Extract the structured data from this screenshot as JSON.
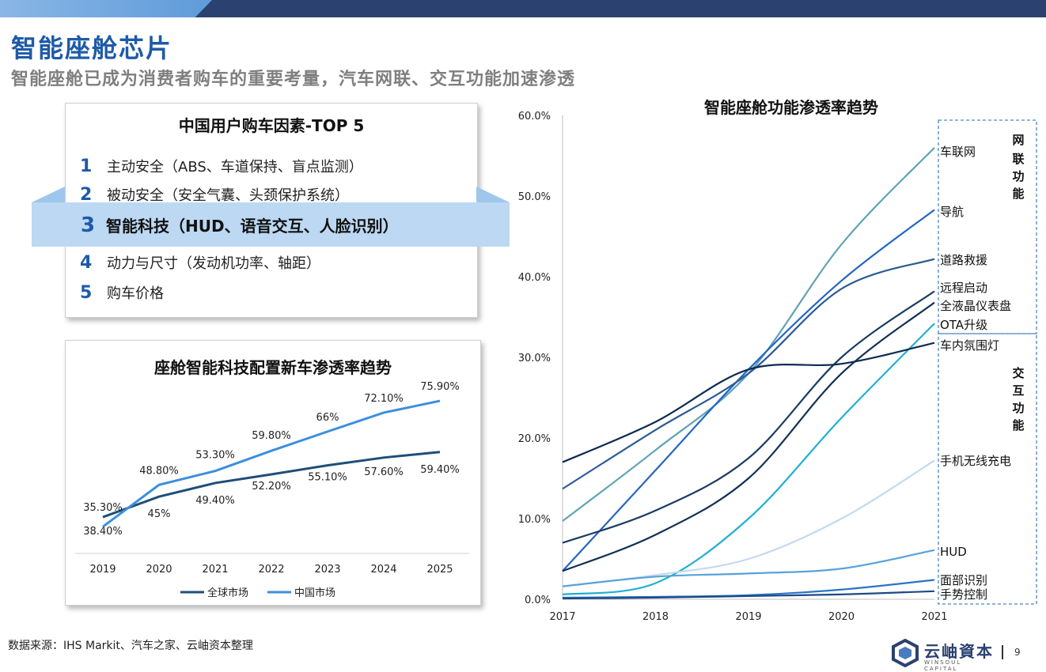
{
  "header": {
    "title": "智能座舱芯片",
    "subtitle": "智能座舱已成为消费者购车的重要考量，汽车网联、交互功能加速渗透"
  },
  "top5": {
    "title": "中国用户购车因素-TOP 5",
    "items": [
      {
        "num": "1",
        "label": "主动安全（ABS、车道保持、盲点监测）"
      },
      {
        "num": "2",
        "label": "被动安全（安全气囊、头颈保护系统）"
      },
      {
        "num": "3",
        "label": "智能科技（HUD、语音交互、人脸识别）"
      },
      {
        "num": "4",
        "label": "动力与尺寸（发动机功率、轴距）"
      },
      {
        "num": "5",
        "label": "购车价格"
      }
    ]
  },
  "chart_data": [
    {
      "type": "line",
      "title": "座舱智能科技配置新车渗透率趋势",
      "categories": [
        "2019",
        "2020",
        "2021",
        "2022",
        "2023",
        "2024",
        "2025"
      ],
      "series": [
        {
          "name": "全球市场",
          "values": [
            38.4,
            45,
            49.4,
            52.2,
            55.1,
            57.6,
            59.4
          ],
          "labels": [
            "38.40%",
            "45%",
            "49.40%",
            "52.20%",
            "55.10%",
            "57.60%",
            "59.40%"
          ]
        },
        {
          "name": "中国市场",
          "values": [
            35.3,
            48.8,
            53.3,
            59.8,
            66,
            72.1,
            75.9
          ],
          "labels": [
            "35.30%",
            "48.80%",
            "53.30%",
            "59.80%",
            "66%",
            "72.10%",
            "75.90%"
          ]
        }
      ],
      "ylim": [
        30,
        80
      ],
      "colors": {
        "全球市场": "#1f4e79",
        "中国市场": "#3c8fdc"
      },
      "legend": "bottom"
    },
    {
      "type": "line",
      "title": "智能座舱功能渗透率趋势",
      "x": [
        "2017",
        "2018",
        "2019",
        "2020",
        "2021"
      ],
      "yticks": [
        "0.0%",
        "10.0%",
        "20.0%",
        "30.0%",
        "40.0%",
        "50.0%",
        "60.0%"
      ],
      "ylim": [
        0,
        60
      ],
      "series": [
        {
          "name": "车联网",
          "values": [
            9.7,
            18.5,
            28,
            44,
            56
          ],
          "color": "#5fa3b5"
        },
        {
          "name": "导航",
          "values": [
            3.5,
            16,
            28.5,
            39.5,
            48.3
          ],
          "color": "#2566c2"
        },
        {
          "name": "道路救援",
          "values": [
            13.7,
            21,
            28,
            38.5,
            42.2
          ],
          "color": "#2b5c94"
        },
        {
          "name": "远程启动",
          "values": [
            7,
            11,
            17.5,
            30,
            38.2
          ],
          "color": "#1a3b63"
        },
        {
          "name": "全液晶仪表盘",
          "values": [
            3.5,
            8,
            15,
            28,
            36.8
          ],
          "color": "#123054"
        },
        {
          "name": "OTA升级",
          "values": [
            0.6,
            2,
            10,
            22.5,
            34.2
          ],
          "color": "#1fb0d3"
        },
        {
          "name": "车内氛围灯",
          "values": [
            17,
            22,
            28.5,
            29.2,
            31.8
          ],
          "color": "#0f2b52"
        },
        {
          "name": "手机无线充电",
          "values": [
            1.6,
            3,
            5,
            10,
            17.2
          ],
          "color": "#c3d9ef"
        },
        {
          "name": "HUD",
          "values": [
            1.6,
            2.8,
            3.2,
            3.8,
            6.1
          ],
          "color": "#58a2da"
        },
        {
          "name": "面部识别",
          "values": [
            0.2,
            0.3,
            0.5,
            1.2,
            2.4
          ],
          "color": "#2a73c5"
        },
        {
          "name": "手势控制",
          "values": [
            0.1,
            0.2,
            0.4,
            0.6,
            1.0
          ],
          "color": "#1b4a86"
        }
      ],
      "groups": [
        {
          "label": [
            "网",
            "联",
            "功",
            "能"
          ]
        },
        {
          "label": [
            "交",
            "互",
            "功",
            "能"
          ]
        }
      ]
    }
  ],
  "footer": {
    "source": "数据来源：IHS Markit、汽车之家、云岫资本整理",
    "logo_name": "云岫資本",
    "logo_sub": "WINSOUL CAPITAL",
    "page_number": "9"
  }
}
